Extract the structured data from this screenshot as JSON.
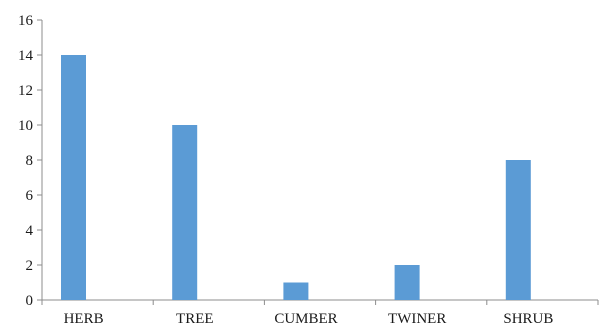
{
  "chart_data": {
    "type": "bar",
    "categories": [
      "HERB",
      "TREE",
      "CUMBER",
      "TWINER",
      "SHRUB"
    ],
    "values": [
      14,
      10,
      1,
      2,
      8
    ],
    "title": "",
    "xlabel": "",
    "ylabel": "",
    "ylim": [
      0,
      16
    ],
    "yticks": [
      0,
      2,
      4,
      6,
      8,
      10,
      12,
      14,
      16
    ],
    "grid": false,
    "legend": "none",
    "bar_color": "#5b9bd5"
  }
}
